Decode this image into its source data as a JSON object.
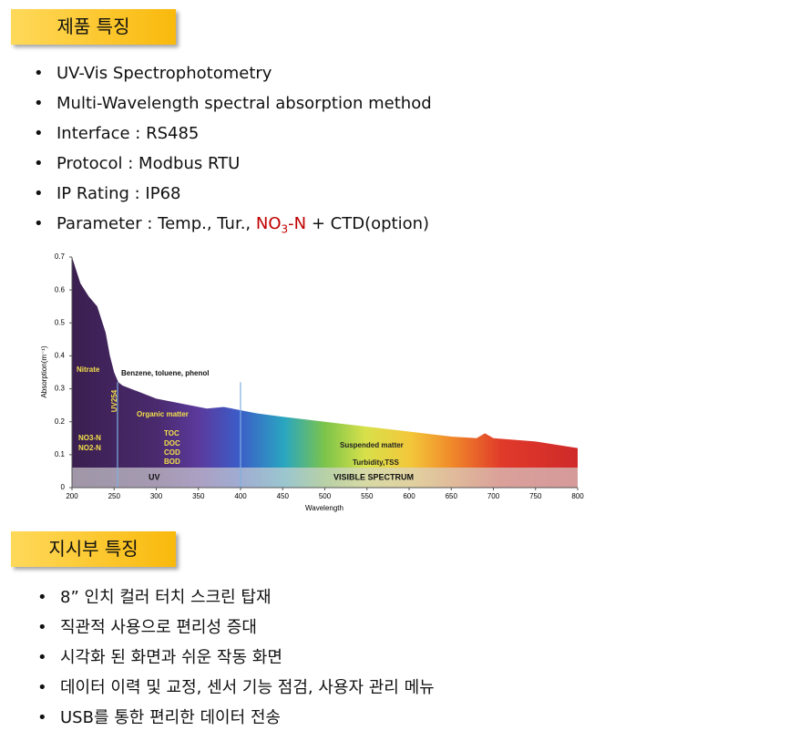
{
  "sections": [
    {
      "title": "제품 특징",
      "items": [
        "UV-Vis Spectrophotometry",
        "Multi-Wavelength spectral absorption method",
        "Interface : RS485",
        "Protocol : Modbus RTU",
        "IP Rating : IP68"
      ],
      "parameter": {
        "prefix": "Parameter : Temp., Tur., ",
        "highlight": "NO",
        "subscript": "3",
        "highlight_end": "-N",
        "suffix": " + CTD(option)",
        "highlight_color": "#c00000"
      }
    },
    {
      "title": "지시부 특징",
      "items": [
        "8” 인치 컬러 터치 스크린 탑재",
        "직관적 사용으로 편리성 증대",
        "시각화 된 화면과 쉬운 작동 화면",
        "데이터 이력 및 교정, 센서 기능 점검, 사용자 관리 메뉴",
        "USB를 통한 편리한 데이터 전송"
      ]
    }
  ],
  "chart_data": {
    "type": "area",
    "x_label": "Wavelength",
    "y_label": "Absorption(m⁻¹)",
    "x": [
      200,
      205,
      210,
      220,
      230,
      240,
      245,
      250,
      255,
      260,
      270,
      280,
      300,
      320,
      340,
      360,
      380,
      400,
      420,
      450,
      500,
      550,
      600,
      650,
      680,
      690,
      700,
      750,
      800
    ],
    "values": [
      0.7,
      0.66,
      0.62,
      0.58,
      0.55,
      0.47,
      0.4,
      0.35,
      0.32,
      0.31,
      0.3,
      0.29,
      0.27,
      0.26,
      0.25,
      0.24,
      0.245,
      0.235,
      0.225,
      0.215,
      0.2,
      0.185,
      0.17,
      0.155,
      0.15,
      0.165,
      0.15,
      0.14,
      0.12
    ],
    "xlim": [
      200,
      800
    ],
    "xticks": [
      200,
      250,
      300,
      350,
      400,
      450,
      500,
      550,
      600,
      650,
      700,
      750,
      800
    ],
    "ylim": [
      0,
      0.7
    ],
    "yticks": [
      0,
      0.1,
      0.2,
      0.3,
      0.4,
      0.5,
      0.6,
      0.7
    ],
    "reference_lines": [
      254,
      400
    ],
    "annotations": [
      "Nitrate",
      "Benzene, toluene, phenol",
      "UV254",
      "Organic matter",
      "TOC",
      "DOC",
      "COD",
      "BOD",
      "NO3-N",
      "NO2-N",
      "Suspended matter",
      "Turbidity,TSS"
    ],
    "band_labels": [
      "UV",
      "VISIBLE SPECTRUM"
    ]
  }
}
